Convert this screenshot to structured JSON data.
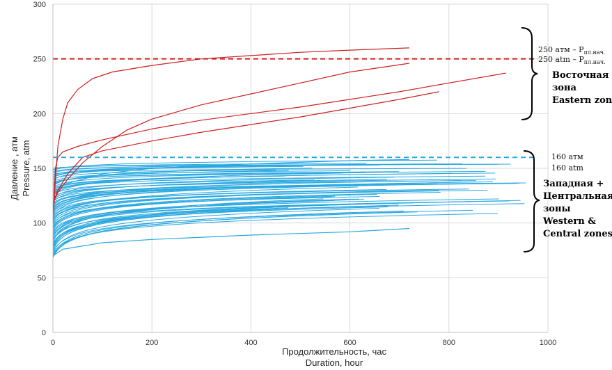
{
  "chart_data": {
    "type": "line",
    "title": "",
    "xlabel_ru": "Продолжительность, час",
    "xlabel_en": "Duration, hour",
    "ylabel_ru": "Давление , атм",
    "ylabel_en": "Pressure, atm",
    "xlim": [
      0,
      1000
    ],
    "ylim": [
      0,
      300
    ],
    "xticks": [
      "0",
      "200",
      "400",
      "600",
      "800",
      "1000"
    ],
    "yticks": [
      "0",
      "50",
      "100",
      "150",
      "200",
      "250",
      "300"
    ],
    "grid": true,
    "colors": {
      "eastern": "#cc1f1f",
      "western": "#29a8e0",
      "grid": "#d9d9d9",
      "axis": "#bfbfbf"
    },
    "reference_lines": [
      {
        "y": 250,
        "color": "#cc1f1f",
        "style": "dashed",
        "label_ru": "250 атм – P",
        "label_ru_sub": "пл.нач.",
        "label_en": "250 atm – P",
        "label_en_sub": "пл.нач."
      },
      {
        "y": 160,
        "color": "#29a8e0",
        "style": "dashed",
        "label_ru": "160 атм",
        "label_en": "160 atm"
      }
    ],
    "zones": [
      {
        "name_ru_1": "Восточная",
        "name_ru_2": "зона",
        "name_en": "Eastern zone",
        "y_range": [
          195,
          282
        ]
      },
      {
        "name_ru_1": "Западная +",
        "name_ru_2": "Центральная",
        "name_ru_3": "зоны",
        "name_en_1": "Western &",
        "name_en_2": "Central zones",
        "y_range": [
          75,
          167
        ]
      }
    ],
    "eastern_series": [
      {
        "name": "E1",
        "points": [
          [
            0,
            100
          ],
          [
            5,
            140
          ],
          [
            10,
            170
          ],
          [
            20,
            195
          ],
          [
            30,
            210
          ],
          [
            50,
            222
          ],
          [
            80,
            232
          ],
          [
            120,
            238
          ],
          [
            200,
            244
          ],
          [
            300,
            250
          ],
          [
            400,
            253
          ],
          [
            500,
            256
          ],
          [
            600,
            258
          ],
          [
            720,
            260
          ]
        ]
      },
      {
        "name": "E2",
        "points": [
          [
            0,
            118
          ],
          [
            10,
            128
          ],
          [
            30,
            140
          ],
          [
            60,
            155
          ],
          [
            100,
            170
          ],
          [
            150,
            185
          ],
          [
            200,
            195
          ],
          [
            300,
            208
          ],
          [
            400,
            218
          ],
          [
            500,
            228
          ],
          [
            600,
            238
          ],
          [
            720,
            246
          ]
        ]
      },
      {
        "name": "E3",
        "points": [
          [
            0,
            100
          ],
          [
            5,
            150
          ],
          [
            10,
            160
          ],
          [
            20,
            165
          ],
          [
            50,
            170
          ],
          [
            100,
            176
          ],
          [
            200,
            186
          ],
          [
            300,
            194
          ],
          [
            400,
            200
          ],
          [
            500,
            206
          ],
          [
            600,
            213
          ],
          [
            700,
            220
          ],
          [
            800,
            228
          ],
          [
            915,
            237
          ]
        ]
      },
      {
        "name": "E4",
        "points": [
          [
            0,
            118
          ],
          [
            10,
            130
          ],
          [
            30,
            145
          ],
          [
            60,
            160
          ],
          [
            100,
            166
          ],
          [
            200,
            175
          ],
          [
            300,
            183
          ],
          [
            400,
            190
          ],
          [
            500,
            197
          ],
          [
            600,
            205
          ],
          [
            700,
            213
          ],
          [
            780,
            220
          ]
        ]
      }
    ],
    "western_series_summary": {
      "count": 75,
      "start_range": [
        68,
        150
      ],
      "end_range": [
        85,
        157
      ],
      "duration_range": [
        450,
        960
      ],
      "lowest": {
        "points": [
          [
            0,
            70
          ],
          [
            20,
            76
          ],
          [
            100,
            82
          ],
          [
            200,
            85
          ],
          [
            400,
            89
          ],
          [
            600,
            92
          ],
          [
            720,
            95
          ]
        ]
      },
      "highest": {
        "points": [
          [
            0,
            125
          ],
          [
            20,
            135
          ],
          [
            100,
            145
          ],
          [
            200,
            150
          ],
          [
            400,
            154
          ],
          [
            600,
            157
          ],
          [
            720,
            158
          ]
        ]
      }
    }
  }
}
